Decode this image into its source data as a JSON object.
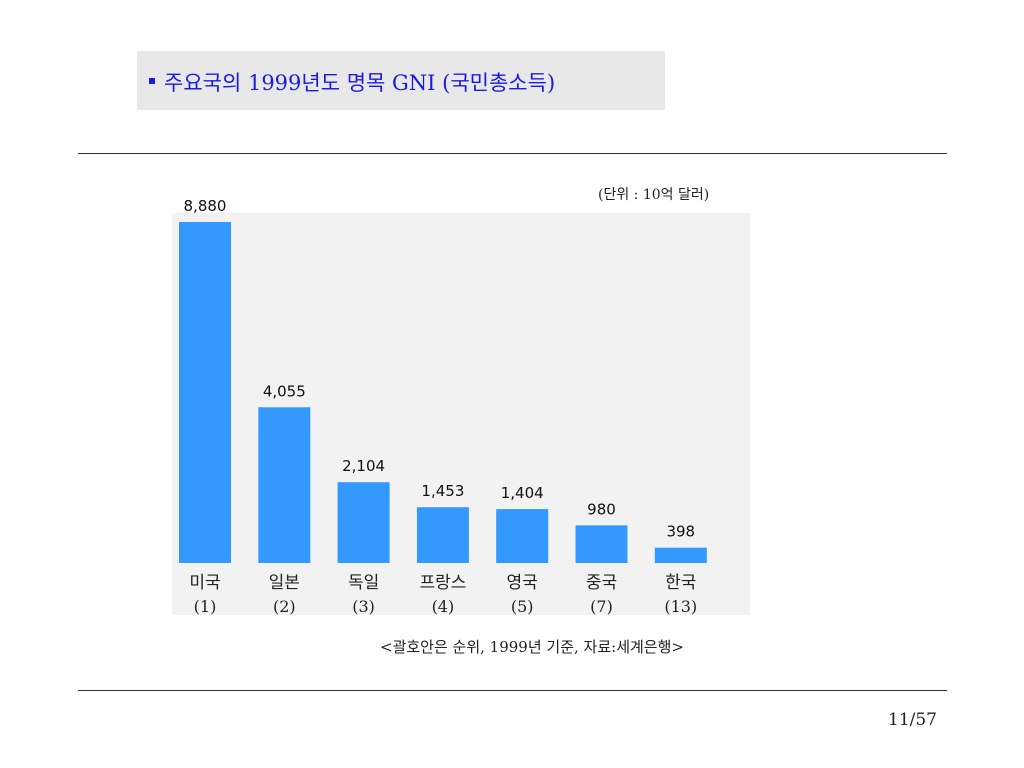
{
  "slide": {
    "title": "주요국의 1999년도 명목 GNI (국민총소득)",
    "unit_note": "(단위 : 10억 달러)",
    "source_note": "<괄호안은 순위, 1999년 기준, 자료:세계은행>",
    "page_number": "11/57"
  },
  "colors": {
    "bar": "#3399ff",
    "plot_background": "#f2f2f2",
    "title_text": "#1a1ae6",
    "title_background": "#e8e8e8"
  },
  "chart_data": {
    "type": "bar",
    "title": "",
    "xlabel": "",
    "ylabel": "",
    "ylim": [
      0,
      9500
    ],
    "grid": false,
    "legend": "none",
    "categories": [
      "미국",
      "일본",
      "독일",
      "프랑스",
      "영국",
      "중국",
      "한국"
    ],
    "ranks": [
      "(1)",
      "(2)",
      "(3)",
      "(4)",
      "(5)",
      "(7)",
      "(13)"
    ],
    "values": [
      8880,
      4055,
      2104,
      1453,
      1404,
      980,
      398
    ],
    "value_labels": [
      "8,880",
      "4,055",
      "2,104",
      "1,453",
      "1,404",
      "980",
      "398"
    ]
  }
}
